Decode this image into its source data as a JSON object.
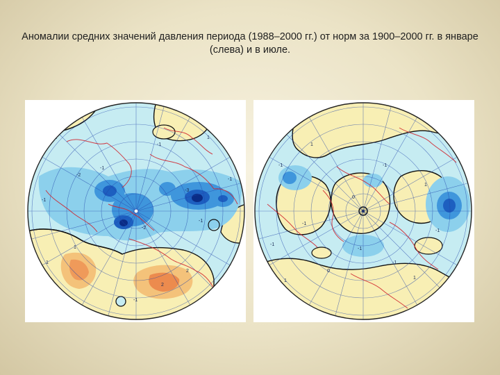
{
  "slide": {
    "title": "Аномалии средних значений давления периода (1988–2000 гг.) от норм за 1900–2000 гг. в январе (слева) и в июле."
  },
  "maps": [
    {
      "name": "january",
      "contour_labels": [
        "-1",
        "-2",
        "-1",
        "-1",
        "-3",
        "-1",
        "-2",
        "2",
        "-1",
        "-1",
        "1",
        "1",
        "2",
        "1",
        "-1"
      ]
    },
    {
      "name": "july",
      "contour_labels": [
        "-1",
        "-1",
        "1",
        "-1",
        "0",
        "1",
        "-1",
        "-1",
        "0",
        "1",
        "1",
        "-1",
        "-1"
      ]
    }
  ],
  "colors": {
    "negative_light": "#c6ecf2",
    "negative_mid": "#8cd0ec",
    "negative_strong": "#3f96dc",
    "negative_core": "#1140a0",
    "positive_light": "#f8efb4",
    "positive_mid": "#f4c27a",
    "positive_strong": "#ec8b4e",
    "zero_contour": "#111111",
    "coastline": "#d0202a",
    "grid": "#2244aa"
  }
}
